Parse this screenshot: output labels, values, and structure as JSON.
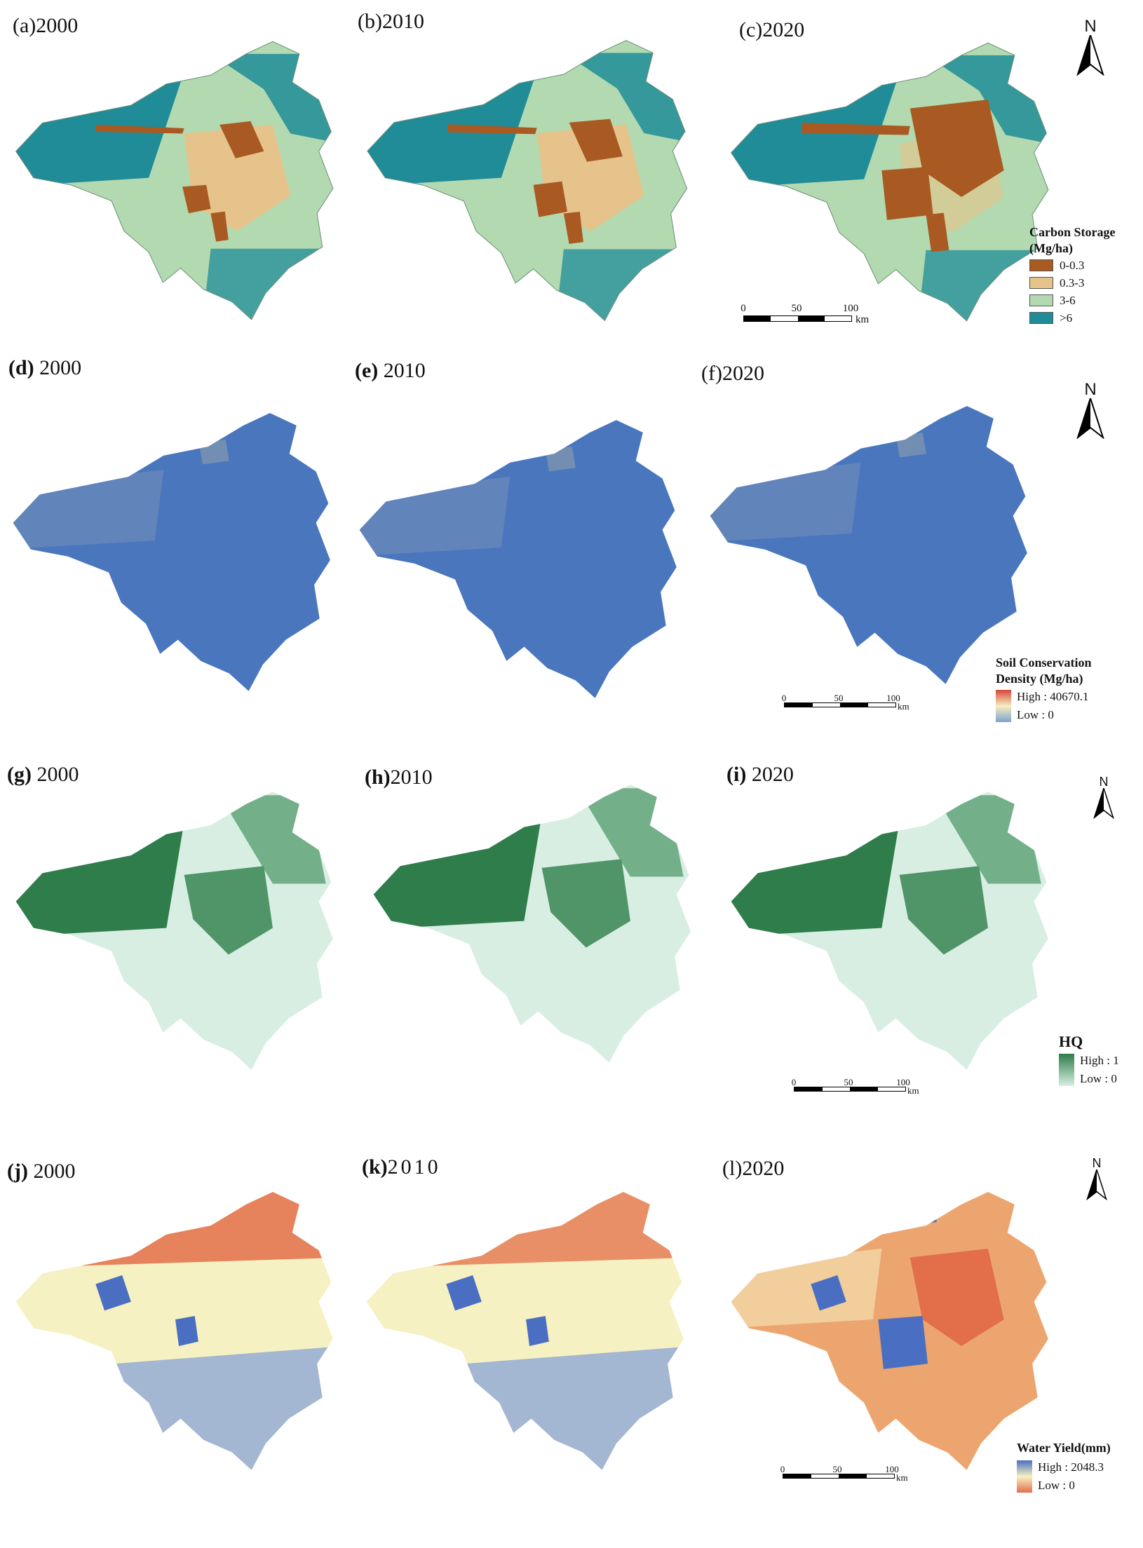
{
  "colors": {
    "carbon": [
      "#a85a22",
      "#e6c38a",
      "#b3d9b0",
      "#1f8c98"
    ],
    "soil_base": "#4a76be",
    "soil_high": "#d9443a",
    "soil_low": "#7da2cf",
    "hq_high": "#2e7d4a",
    "hq_low": "#d8eee3",
    "wy_high": "#4a6fc2",
    "wy_mid": "#f6f1c2",
    "wy_low": "#e36e4a"
  },
  "rows": [
    {
      "id": "carbon",
      "panels": [
        {
          "letter": "(a)",
          "year": "2000"
        },
        {
          "letter": "(b)",
          "year": "2010"
        },
        {
          "letter": "(c)",
          "year": "2020"
        }
      ],
      "north": "N",
      "legend": {
        "title_line1": "Carbon Storage",
        "title_line2": "(Mg/ha)",
        "items": [
          "0-0.3",
          "0.3-3",
          "3-6",
          ">6"
        ]
      },
      "scale": {
        "ticks": [
          "0",
          "50",
          "100"
        ],
        "unit": "km"
      }
    },
    {
      "id": "soil",
      "panels": [
        {
          "letter": "(d)",
          "year": "2000"
        },
        {
          "letter": "(e)",
          "year": "2010"
        },
        {
          "letter": "(f)",
          "year": "2020"
        }
      ],
      "north": "N",
      "legend": {
        "title_line1": "Soil Conservation",
        "title_line2": "Density (Mg/ha)",
        "high": "High : 40670.1",
        "low": "Low : 0"
      },
      "scale": {
        "ticks": [
          "0",
          "50",
          "100"
        ],
        "unit": "km"
      }
    },
    {
      "id": "hq",
      "panels": [
        {
          "letter": "(g)",
          "year": "2000"
        },
        {
          "letter": "(h)",
          "year": "2010"
        },
        {
          "letter": "(i)",
          "year": "2020"
        }
      ],
      "north": "N",
      "legend": {
        "title_line1": "HQ",
        "high": "High : 1",
        "low": "Low : 0"
      },
      "scale": {
        "ticks": [
          "0",
          "50",
          "100"
        ],
        "unit": "km"
      }
    },
    {
      "id": "wy",
      "panels": [
        {
          "letter": "(j)",
          "year": "2000"
        },
        {
          "letter": "(k)",
          "year": "2010"
        },
        {
          "letter": "(l)",
          "year": "2020"
        }
      ],
      "north": "N",
      "legend": {
        "title_line1": "Water Yield(mm)",
        "high": "High : 2048.3",
        "low": "Low : 0"
      },
      "scale": {
        "ticks": [
          "0",
          "50",
          "100"
        ],
        "unit": "km"
      }
    }
  ]
}
